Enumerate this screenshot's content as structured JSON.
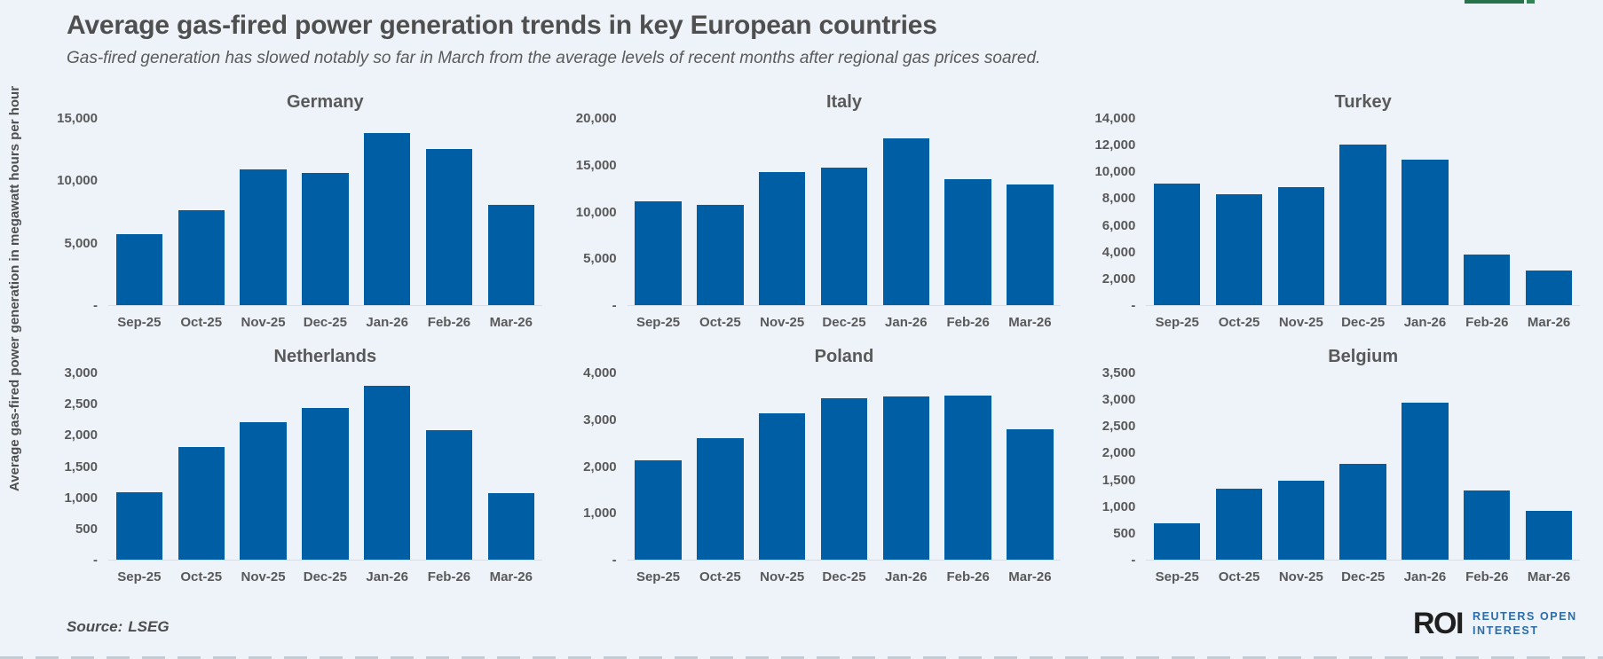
{
  "header": {
    "title": "Average gas-fired power generation trends in key European countries",
    "subtitle": "Gas-fired generation has slowed notably so far in March from the average levels of recent months after regional gas prices soared."
  },
  "y_axis_label": "Average gas-fired power generation in megawatt hours per hour",
  "months": [
    "Sep-25",
    "Oct-25",
    "Nov-25",
    "Dec-25",
    "Jan-26",
    "Feb-26",
    "Mar-26"
  ],
  "colors": {
    "bar": "#005FA4",
    "background": "#EDF3F8",
    "accent_green": "#27724A",
    "logo_blue": "#2B6CA9"
  },
  "chart_data": [
    {
      "type": "bar",
      "title": "Germany",
      "categories": [
        "Sep-25",
        "Oct-25",
        "Nov-25",
        "Dec-25",
        "Jan-26",
        "Feb-26",
        "Mar-26"
      ],
      "values": [
        5700,
        7600,
        10900,
        10600,
        13800,
        12500,
        8000
      ],
      "ylim": [
        0,
        15000
      ],
      "xlabel": "",
      "ylabel": "",
      "ticks": [
        {
          "label": "15,000",
          "value": 15000
        },
        {
          "label": "10,000",
          "value": 10000
        },
        {
          "label": "5,000",
          "value": 5000
        },
        {
          "label": "-",
          "value": 0
        }
      ]
    },
    {
      "type": "bar",
      "title": "Italy",
      "categories": [
        "Sep-25",
        "Oct-25",
        "Nov-25",
        "Dec-25",
        "Jan-26",
        "Feb-26",
        "Mar-26"
      ],
      "values": [
        11100,
        10700,
        14200,
        14700,
        17800,
        13500,
        12900
      ],
      "ylim": [
        0,
        20000
      ],
      "xlabel": "",
      "ylabel": "",
      "ticks": [
        {
          "label": "20,000",
          "value": 20000
        },
        {
          "label": "15,000",
          "value": 15000
        },
        {
          "label": "10,000",
          "value": 10000
        },
        {
          "label": "5,000",
          "value": 5000
        },
        {
          "label": "-",
          "value": 0
        }
      ]
    },
    {
      "type": "bar",
      "title": "Turkey",
      "categories": [
        "Sep-25",
        "Oct-25",
        "Nov-25",
        "Dec-25",
        "Jan-26",
        "Feb-26",
        "Mar-26"
      ],
      "values": [
        9100,
        8300,
        8800,
        12000,
        10900,
        3800,
        2600
      ],
      "ylim": [
        0,
        14000
      ],
      "xlabel": "",
      "ylabel": "",
      "ticks": [
        {
          "label": "14,000",
          "value": 14000
        },
        {
          "label": "12,000",
          "value": 12000
        },
        {
          "label": "10,000",
          "value": 10000
        },
        {
          "label": "8,000",
          "value": 8000
        },
        {
          "label": "6,000",
          "value": 6000
        },
        {
          "label": "4,000",
          "value": 4000
        },
        {
          "label": "2,000",
          "value": 2000
        },
        {
          "label": "-",
          "value": 0
        }
      ]
    },
    {
      "type": "bar",
      "title": "Netherlands",
      "categories": [
        "Sep-25",
        "Oct-25",
        "Nov-25",
        "Dec-25",
        "Jan-26",
        "Feb-26",
        "Mar-26"
      ],
      "values": [
        1080,
        1800,
        2210,
        2430,
        2790,
        2070,
        1060
      ],
      "ylim": [
        0,
        3000
      ],
      "xlabel": "",
      "ylabel": "",
      "ticks": [
        {
          "label": "3,000",
          "value": 3000
        },
        {
          "label": "2,500",
          "value": 2500
        },
        {
          "label": "2,000",
          "value": 2000
        },
        {
          "label": "1,500",
          "value": 1500
        },
        {
          "label": "1,000",
          "value": 1000
        },
        {
          "label": "500",
          "value": 500
        },
        {
          "label": "-",
          "value": 0
        }
      ]
    },
    {
      "type": "bar",
      "title": "Poland",
      "categories": [
        "Sep-25",
        "Oct-25",
        "Nov-25",
        "Dec-25",
        "Jan-26",
        "Feb-26",
        "Mar-26"
      ],
      "values": [
        2130,
        2600,
        3120,
        3460,
        3490,
        3510,
        2790
      ],
      "ylim": [
        0,
        4000
      ],
      "xlabel": "",
      "ylabel": "",
      "ticks": [
        {
          "label": "4,000",
          "value": 4000
        },
        {
          "label": "3,000",
          "value": 3000
        },
        {
          "label": "2,000",
          "value": 2000
        },
        {
          "label": "1,000",
          "value": 1000
        },
        {
          "label": "-",
          "value": 0
        }
      ]
    },
    {
      "type": "bar",
      "title": "Belgium",
      "categories": [
        "Sep-25",
        "Oct-25",
        "Nov-25",
        "Dec-25",
        "Jan-26",
        "Feb-26",
        "Mar-26"
      ],
      "values": [
        680,
        1320,
        1470,
        1790,
        2930,
        1300,
        920
      ],
      "ylim": [
        0,
        3500
      ],
      "xlabel": "",
      "ylabel": "",
      "ticks": [
        {
          "label": "3,500",
          "value": 3500
        },
        {
          "label": "3,000",
          "value": 3000
        },
        {
          "label": "2,500",
          "value": 2500
        },
        {
          "label": "2,000",
          "value": 2000
        },
        {
          "label": "1,500",
          "value": 1500
        },
        {
          "label": "1,000",
          "value": 1000
        },
        {
          "label": "500",
          "value": 500
        },
        {
          "label": "-",
          "value": 0
        }
      ]
    }
  ],
  "source": {
    "label": "Source:",
    "value": "LSEG"
  },
  "logo": {
    "roi": "ROI",
    "line1": "REUTERS OPEN",
    "line2": "INTEREST"
  }
}
